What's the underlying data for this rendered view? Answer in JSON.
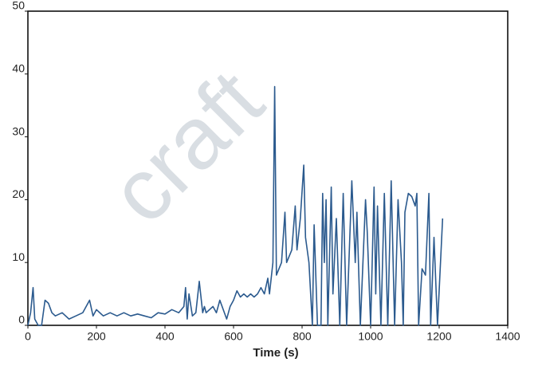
{
  "chart_data": {
    "type": "line",
    "xlabel": "Time (s)",
    "watermark": "craft",
    "x": [
      0,
      8,
      15,
      20,
      30,
      40,
      50,
      60,
      70,
      80,
      100,
      120,
      140,
      160,
      180,
      190,
      200,
      220,
      240,
      260,
      280,
      300,
      320,
      340,
      360,
      380,
      400,
      420,
      440,
      455,
      460,
      465,
      470,
      480,
      490,
      500,
      510,
      515,
      520,
      540,
      550,
      560,
      580,
      590,
      600,
      610,
      620,
      630,
      640,
      650,
      660,
      670,
      680,
      690,
      700,
      705,
      715,
      720,
      725,
      740,
      750,
      755,
      770,
      780,
      785,
      795,
      805,
      810,
      820,
      830,
      835,
      845,
      855,
      860,
      865,
      870,
      875,
      885,
      890,
      900,
      910,
      920,
      930,
      945,
      955,
      960,
      970,
      985,
      990,
      1000,
      1010,
      1015,
      1020,
      1030,
      1040,
      1050,
      1060,
      1070,
      1080,
      1090,
      1095,
      1100,
      1110,
      1120,
      1130,
      1135,
      1140,
      1150,
      1160,
      1170,
      1175,
      1185,
      1195,
      1210
    ],
    "series": [
      {
        "name": null,
        "color": "#2b5a8e",
        "values": [
          0,
          2,
          6,
          1,
          0,
          0,
          4,
          3.5,
          2,
          1.5,
          2,
          1,
          1.5,
          2,
          4,
          1.5,
          2.5,
          1.5,
          2,
          1.5,
          2,
          1.5,
          1.8,
          1.5,
          1.2,
          2,
          1.8,
          2.5,
          2,
          3,
          6,
          1,
          5,
          1.5,
          2,
          7,
          2,
          3,
          2,
          3,
          2,
          4,
          1,
          3,
          4,
          5.5,
          4.5,
          5,
          4.5,
          5,
          4.5,
          5,
          6,
          5,
          7.5,
          5,
          10,
          38,
          8,
          10,
          18,
          10,
          12,
          19,
          12,
          17,
          25.5,
          14,
          10,
          0,
          16,
          0,
          0,
          21,
          10,
          20,
          0,
          22,
          5,
          17,
          0,
          21,
          0,
          23,
          10,
          18,
          0,
          20,
          15,
          0,
          22,
          5,
          19,
          0,
          21,
          0,
          23,
          0,
          20,
          10,
          0,
          18,
          21,
          20.5,
          19,
          21,
          0,
          9,
          8,
          21,
          0,
          14,
          0,
          17
        ]
      }
    ],
    "xlim": [
      0,
      1400
    ],
    "xticks": [
      0,
      200,
      400,
      600,
      800,
      1000,
      1200,
      1400
    ],
    "ylim": [
      0,
      50
    ],
    "yticks": [
      0,
      10,
      20,
      30,
      40,
      50
    ]
  }
}
